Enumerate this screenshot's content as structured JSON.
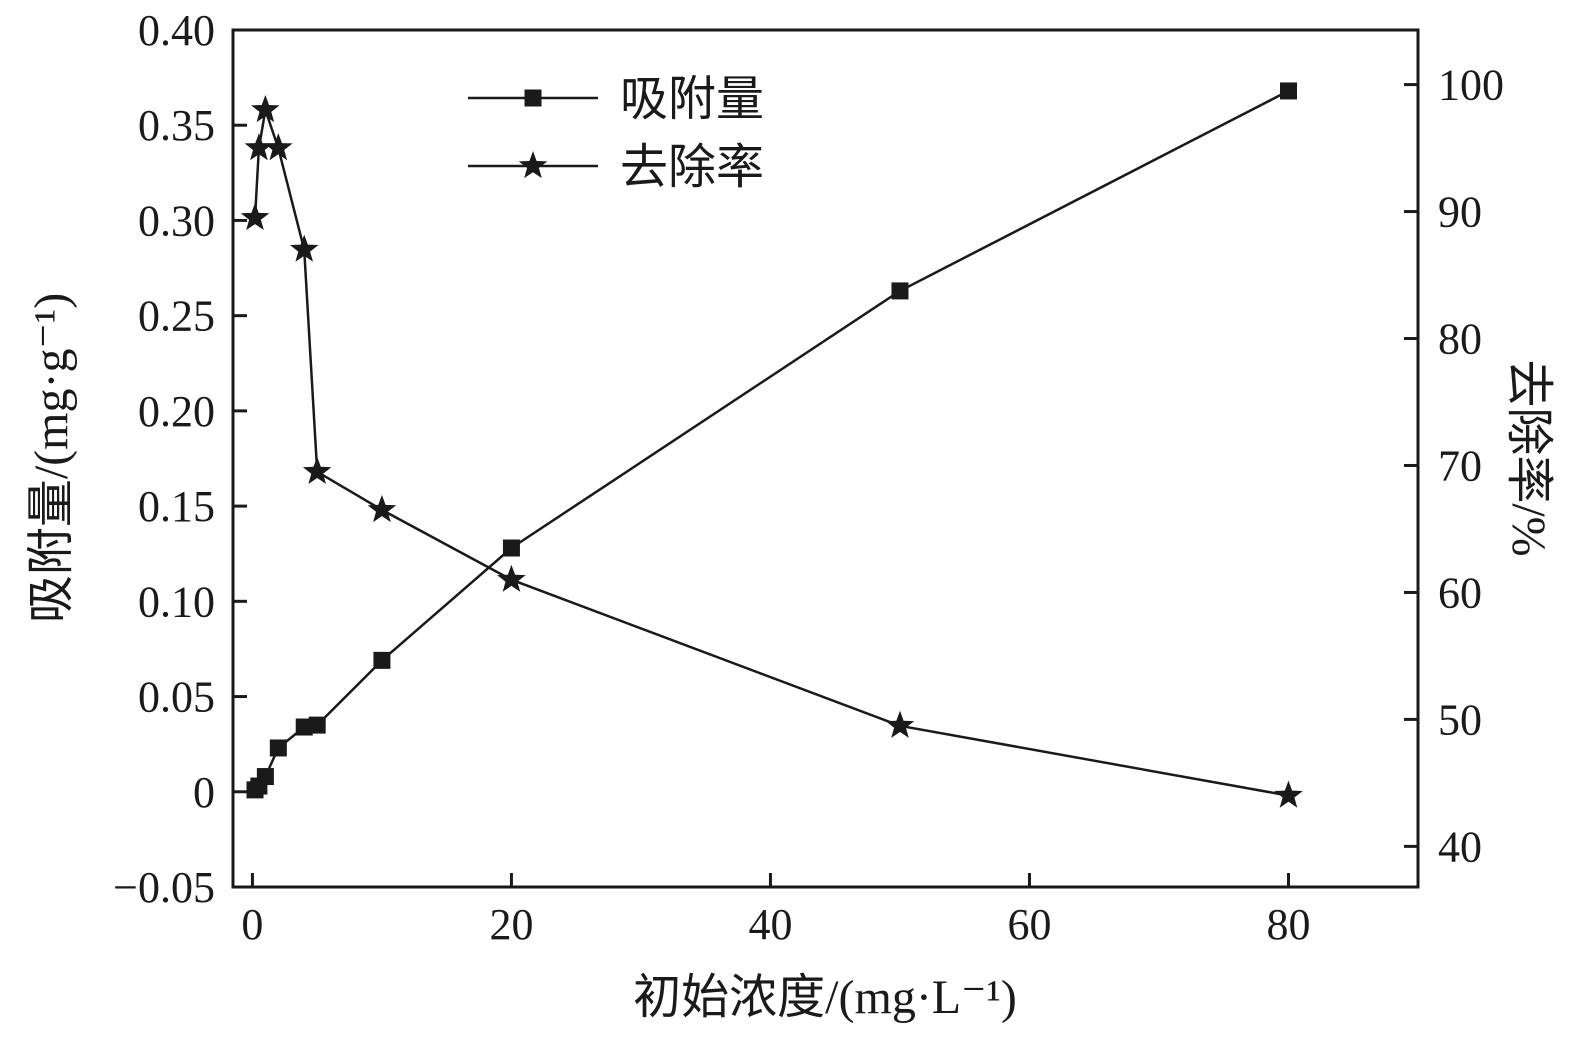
{
  "chart_data": {
    "type": "line",
    "title": "",
    "xlabel": "初始浓度/(mg·L⁻¹)",
    "ylabel_left": "吸附量/(mg·g⁻¹)",
    "ylabel_right": "去除率/%",
    "x": [
      0.2,
      0.5,
      1,
      2,
      4,
      5,
      10,
      20,
      50,
      80
    ],
    "series": [
      {
        "name": "吸附量",
        "axis": "left",
        "marker": "square",
        "values": [
          0.001,
          0.003,
          0.008,
          0.023,
          0.034,
          0.035,
          0.069,
          0.128,
          0.263,
          0.368
        ]
      },
      {
        "name": "去除率",
        "axis": "right",
        "marker": "star",
        "values": [
          89.5,
          95,
          98,
          95,
          87,
          69.5,
          66.5,
          61,
          49.5,
          44
        ]
      }
    ],
    "xlim": [
      -1.5,
      90
    ],
    "ylim_left": [
      -0.05,
      0.4
    ],
    "ylim_right": [
      36.8,
      104.3
    ],
    "x_ticks": [
      {
        "v": 0,
        "label": "0"
      },
      {
        "v": 20,
        "label": "20"
      },
      {
        "v": 40,
        "label": "40"
      },
      {
        "v": 60,
        "label": "60"
      },
      {
        "v": 80,
        "label": "80"
      }
    ],
    "left_ticks": [
      {
        "v": 0.4,
        "label": "0.40"
      },
      {
        "v": 0.35,
        "label": "0.35"
      },
      {
        "v": 0.3,
        "label": "0.30"
      },
      {
        "v": 0.25,
        "label": "0.25"
      },
      {
        "v": 0.2,
        "label": "0.20"
      },
      {
        "v": 0.15,
        "label": "0.15"
      },
      {
        "v": 0.1,
        "label": "0.10"
      },
      {
        "v": 0.05,
        "label": "0.05"
      },
      {
        "v": 0,
        "label": "0"
      },
      {
        "v": -0.05,
        "label": "−0.05"
      }
    ],
    "right_ticks": [
      {
        "v": 100,
        "label": "100"
      },
      {
        "v": 90,
        "label": "90"
      },
      {
        "v": 80,
        "label": "80"
      },
      {
        "v": 70,
        "label": "70"
      },
      {
        "v": 60,
        "label": "60"
      },
      {
        "v": 50,
        "label": "50"
      },
      {
        "v": 40,
        "label": "40"
      }
    ],
    "legend": {
      "position": "top-center",
      "entries": [
        "吸附量",
        "去除率"
      ]
    },
    "grid": false,
    "ink_color": "#1a1a1a",
    "background": "#ffffff"
  }
}
